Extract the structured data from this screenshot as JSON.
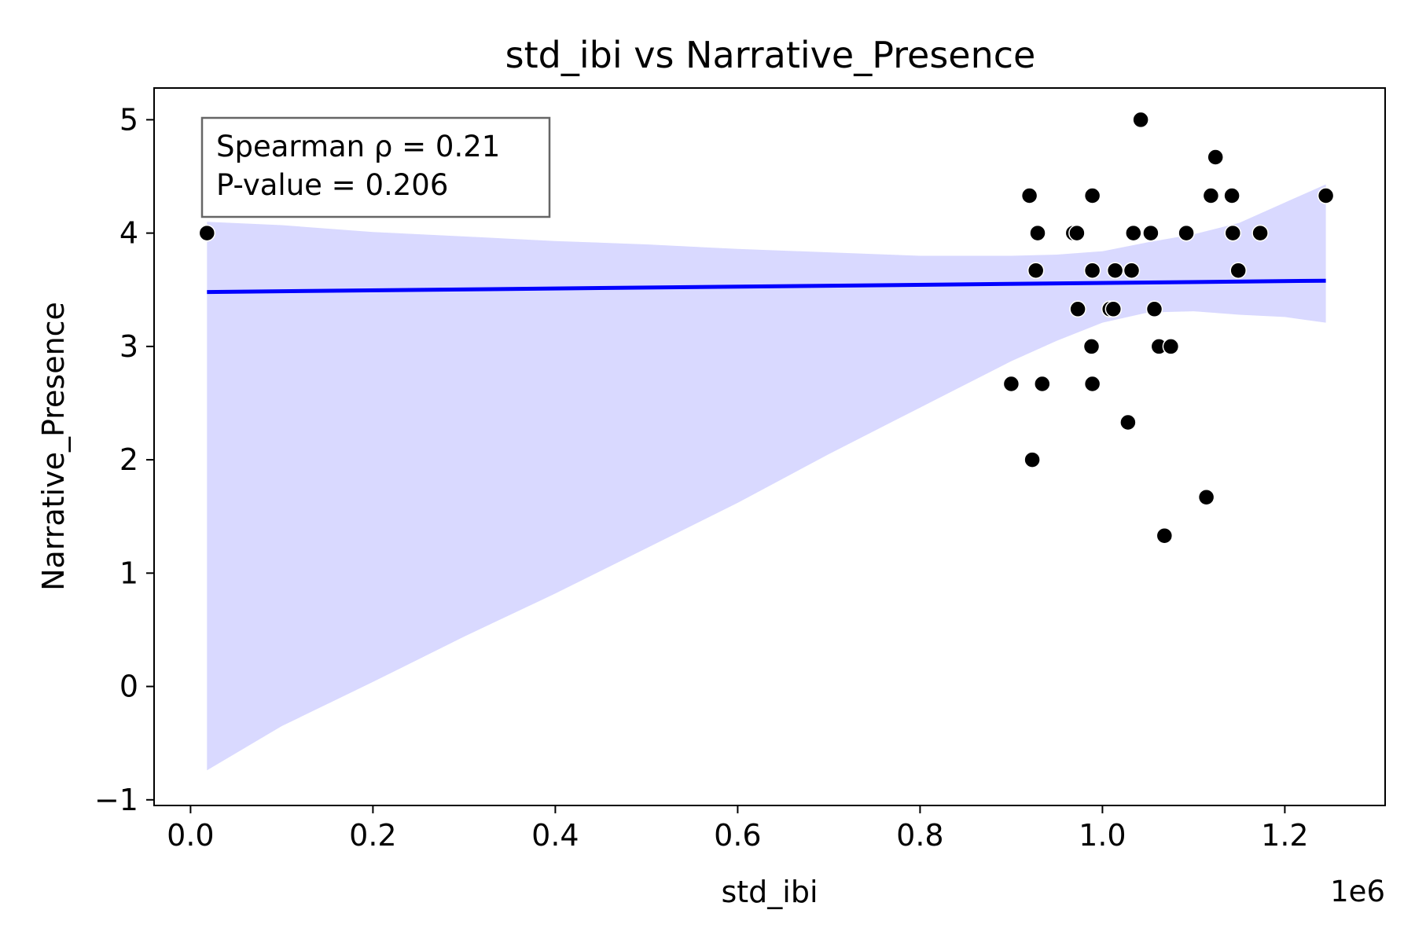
{
  "chart_data": {
    "type": "scatter",
    "title": "std_ibi vs Narrative_Presence",
    "xlabel": "std_ibi",
    "ylabel": "Narrative_Presence",
    "x_offset_label": "1e6",
    "x_scale": 1000000,
    "xlim": [
      -40000,
      1310000
    ],
    "ylim": [
      -1.05,
      5.28
    ],
    "xticks": [
      0,
      200000,
      400000,
      600000,
      800000,
      1000000,
      1200000
    ],
    "xtick_labels": [
      "0.0",
      "0.2",
      "0.4",
      "0.6",
      "0.8",
      "1.0",
      "1.2"
    ],
    "yticks": [
      -1,
      0,
      1,
      2,
      3,
      4,
      5
    ],
    "ytick_labels": [
      "−1",
      "0",
      "1",
      "2",
      "3",
      "4",
      "5"
    ],
    "grid": false,
    "annotation": {
      "lines": [
        "Spearman ρ = 0.21",
        "P-value = 0.206"
      ],
      "placement": "top-left"
    },
    "points": [
      {
        "x": 18000,
        "y": 4.0
      },
      {
        "x": 900000,
        "y": 2.67
      },
      {
        "x": 920000,
        "y": 4.33
      },
      {
        "x": 923000,
        "y": 2.0
      },
      {
        "x": 927000,
        "y": 3.67
      },
      {
        "x": 929000,
        "y": 4.0
      },
      {
        "x": 934000,
        "y": 2.67
      },
      {
        "x": 968000,
        "y": 4.0
      },
      {
        "x": 972000,
        "y": 4.0
      },
      {
        "x": 973000,
        "y": 3.33
      },
      {
        "x": 988000,
        "y": 3.0
      },
      {
        "x": 989000,
        "y": 4.33
      },
      {
        "x": 989000,
        "y": 3.67
      },
      {
        "x": 989000,
        "y": 2.67
      },
      {
        "x": 1008000,
        "y": 3.33
      },
      {
        "x": 1012000,
        "y": 3.33
      },
      {
        "x": 1014000,
        "y": 3.67
      },
      {
        "x": 1028000,
        "y": 2.33
      },
      {
        "x": 1032000,
        "y": 3.67
      },
      {
        "x": 1034000,
        "y": 4.0
      },
      {
        "x": 1042000,
        "y": 5.0
      },
      {
        "x": 1053000,
        "y": 4.0
      },
      {
        "x": 1057000,
        "y": 3.33
      },
      {
        "x": 1062000,
        "y": 3.0
      },
      {
        "x": 1068000,
        "y": 1.33
      },
      {
        "x": 1075000,
        "y": 3.0
      },
      {
        "x": 1092000,
        "y": 4.0
      },
      {
        "x": 1114000,
        "y": 1.67
      },
      {
        "x": 1119000,
        "y": 4.33
      },
      {
        "x": 1124000,
        "y": 4.67
      },
      {
        "x": 1142000,
        "y": 4.33
      },
      {
        "x": 1143000,
        "y": 4.0
      },
      {
        "x": 1149000,
        "y": 3.67
      },
      {
        "x": 1173000,
        "y": 4.0
      },
      {
        "x": 1245000,
        "y": 4.33
      }
    ],
    "regression": {
      "x": [
        18000,
        1245000
      ],
      "y": [
        3.48,
        3.58
      ]
    },
    "confidence_band": {
      "x": [
        18000,
        100000,
        200000,
        300000,
        400000,
        500000,
        600000,
        700000,
        800000,
        900000,
        950000,
        1000000,
        1050000,
        1100000,
        1150000,
        1200000,
        1245000
      ],
      "upper": [
        4.1,
        4.07,
        4.01,
        3.97,
        3.93,
        3.9,
        3.86,
        3.83,
        3.8,
        3.8,
        3.81,
        3.84,
        3.92,
        3.99,
        4.09,
        4.27,
        4.43
      ],
      "lower": [
        -0.74,
        -0.35,
        0.04,
        0.44,
        0.82,
        1.22,
        1.62,
        2.05,
        2.46,
        2.87,
        3.05,
        3.21,
        3.3,
        3.31,
        3.28,
        3.26,
        3.21
      ]
    },
    "colors": {
      "point": "#000000",
      "point_edge": "#ffffff",
      "line": "#0000ff",
      "band": "#d9d9ff",
      "frame": "#000000",
      "annotation_border": "#666666"
    }
  }
}
